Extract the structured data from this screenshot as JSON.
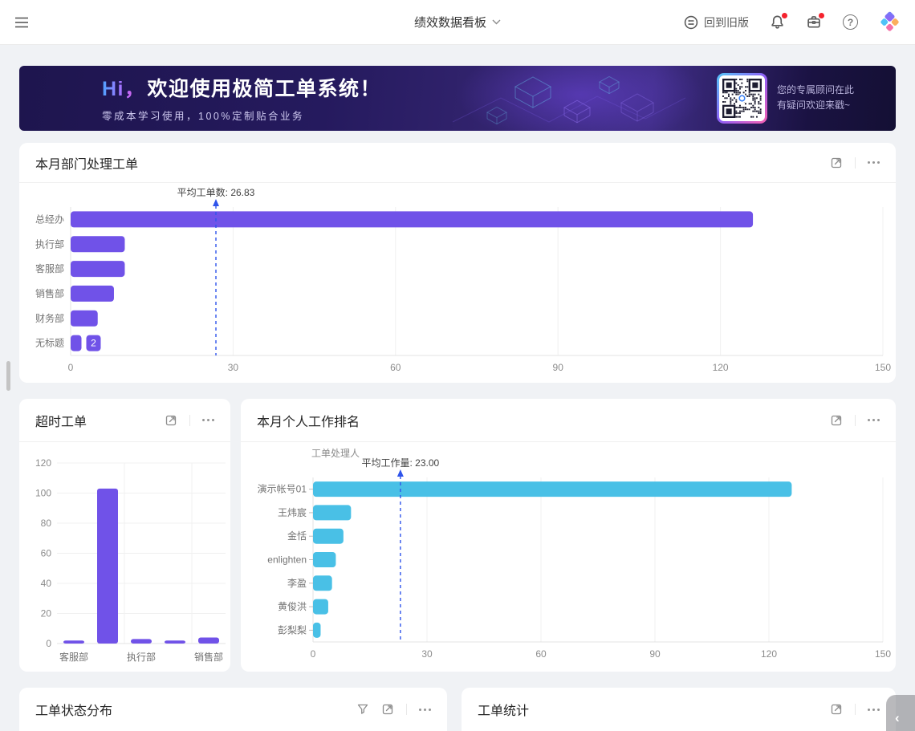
{
  "header": {
    "title": "绩效数据看板",
    "back_label": "回到旧版"
  },
  "banner": {
    "greeting": "Hi，",
    "title": "欢迎使用极简工单系统！",
    "subtitle": "零成本学习使用，100%定制贴合业务",
    "qr_caption_line1": "您的专属顾问在此",
    "qr_caption_line2": "有疑问欢迎来戳~"
  },
  "cards": {
    "status_distribution": {
      "title": "工单状态分布"
    },
    "order_statistics": {
      "title": "工单统计"
    }
  },
  "ui": {
    "help_glyph": "?",
    "collapse_glyph": "‹",
    "colors": {
      "bar_purple": "#7052e8",
      "bar_cyan": "#49c0e6",
      "mean_line_blue": "#2f54eb",
      "notification_red": "#f5222d",
      "banner_bg": "#251a5e"
    }
  },
  "chart_data": [
    {
      "id": "dept",
      "type": "bar",
      "orientation": "horizontal",
      "title": "本月部门处理工单",
      "categories": [
        "总经办",
        "执行部",
        "客服部",
        "销售部",
        "财务部",
        "无标题"
      ],
      "values": [
        126,
        10,
        10,
        8,
        5,
        2
      ],
      "xlim": [
        0,
        150
      ],
      "xticks": [
        0,
        30,
        60,
        90,
        120,
        150
      ],
      "mean_line": {
        "value": 26.83,
        "label": "平均工单数: 26.83"
      },
      "value_badge": {
        "category": "无标题",
        "text": "2"
      },
      "bar_color": "#7052e8",
      "grid": true,
      "legend": "none"
    },
    {
      "id": "overtime",
      "type": "bar",
      "orientation": "vertical",
      "title": "超时工单",
      "categories": [
        "客服部",
        "",
        "执行部",
        "",
        "销售部"
      ],
      "values": [
        2,
        103,
        3,
        2,
        4
      ],
      "ylim": [
        0,
        120
      ],
      "yticks": [
        0,
        20,
        40,
        60,
        80,
        100,
        120
      ],
      "bar_color": "#7052e8",
      "grid": true,
      "legend": "none"
    },
    {
      "id": "personal",
      "type": "bar",
      "orientation": "horizontal",
      "title": "本月个人工作排名",
      "axis_name": "工单处理人",
      "categories": [
        "演示帐号01",
        "王炜宸",
        "金恬",
        "enlighten",
        "李盈",
        "黄俊洪",
        "彭梨梨"
      ],
      "values": [
        126,
        10,
        8,
        6,
        5,
        4,
        2
      ],
      "xlim": [
        0,
        150
      ],
      "xticks": [
        0,
        30,
        60,
        90,
        120,
        150
      ],
      "mean_line": {
        "value": 23,
        "label": "平均工作量: 23.00"
      },
      "bar_color": "#49c0e6",
      "grid": true,
      "legend": "none"
    }
  ]
}
